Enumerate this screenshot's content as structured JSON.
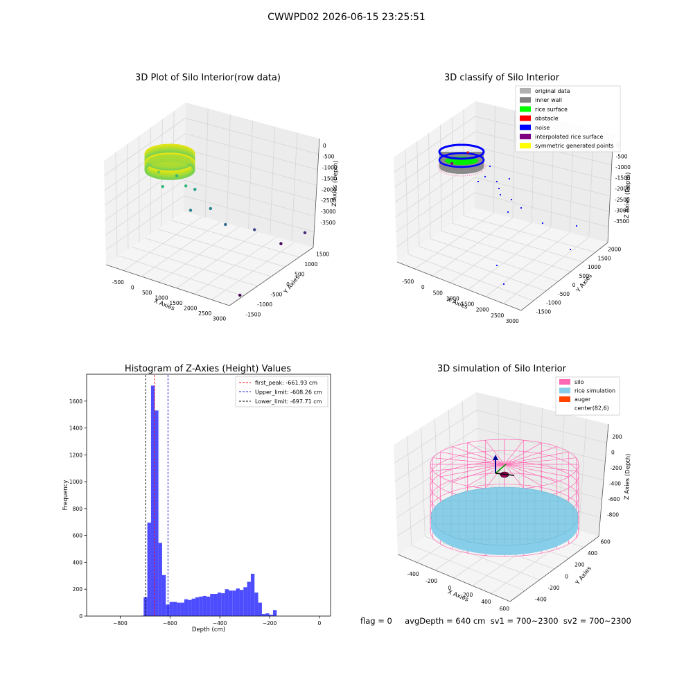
{
  "figure": {
    "title": "CWWPD02 2026-06-15 23:25:51",
    "status_text": "flag = 0     avgDepth = 640 cm  sv1 = 700~2300  sv2 = 700~2300"
  },
  "chart_data": [
    {
      "type": "scatter",
      "title": "3D Plot of Silo Interior(row data)",
      "xlabel": "X Axies",
      "ylabel": "Y Axies",
      "zlabel": "Z Axies (Depth)",
      "x_ticks": [
        "-500",
        "0",
        "500",
        "1000",
        "1500",
        "2000",
        "2500",
        "3000"
      ],
      "y_ticks": [
        "-1500",
        "-1000",
        "-500",
        "0",
        "500",
        "1000",
        "1500"
      ],
      "z_ticks": [
        "0",
        "-500",
        "-1000",
        "-1500",
        "-2000",
        "-2500",
        "-3000",
        "-3500"
      ],
      "colormap": "viridis by depth",
      "outlier_points": [
        {
          "x": 0,
          "y": -400,
          "z": -1000
        },
        {
          "x": 200,
          "y": -500,
          "z": -1300
        },
        {
          "x": 400,
          "y": -200,
          "z": -1100
        },
        {
          "x": 600,
          "y": -100,
          "z": -1400
        },
        {
          "x": 800,
          "y": 0,
          "z": -1500
        },
        {
          "x": 900,
          "y": -300,
          "z": -1900
        },
        {
          "x": 1200,
          "y": 100,
          "z": -2000
        },
        {
          "x": 1500,
          "y": 300,
          "z": -2500
        },
        {
          "x": 2000,
          "y": 800,
          "z": -2800
        },
        {
          "x": 2500,
          "y": 1200,
          "z": -3300
        },
        {
          "x": 2800,
          "y": -800,
          "z": -3500
        },
        {
          "x": 3000,
          "y": 1500,
          "z": -3000
        }
      ]
    },
    {
      "type": "scatter",
      "title": "3D classify of Silo Interior",
      "xlabel": "X Axies",
      "ylabel": "Y Axies",
      "zlabel": "Z Axies (Depth)",
      "x_ticks": [
        "-500",
        "0",
        "500",
        "1000",
        "1500",
        "2000",
        "2500",
        "3000"
      ],
      "y_ticks": [
        "-1500",
        "-1000",
        "-500",
        "0",
        "500",
        "1000",
        "1500",
        "2000"
      ],
      "z_ticks": [
        "0",
        "-500",
        "-1000",
        "-1500",
        "-2000",
        "-2500",
        "-3000",
        "-3500"
      ],
      "legend": [
        {
          "label": "original data",
          "color": "#b0b0b0"
        },
        {
          "label": "inner wall",
          "color": "#808080"
        },
        {
          "label": "rice surface",
          "color": "#00ff00"
        },
        {
          "label": "obstacle",
          "color": "#ff0000"
        },
        {
          "label": "noise",
          "color": "#0000ff"
        },
        {
          "label": "interpolated rice surface",
          "color": "#800080"
        },
        {
          "label": "symmetric generated points",
          "color": "#ffff00"
        }
      ],
      "legend_position": "top-right"
    },
    {
      "type": "bar",
      "title": "Histogram of Z-Axies (Height) Values",
      "xlabel": "Depth (cm)",
      "ylabel": "Frequency",
      "xlim": [
        -935,
        45
      ],
      "ylim": [
        0,
        1800
      ],
      "x_ticks": [
        -800,
        -600,
        -400,
        -200,
        0
      ],
      "y_ticks": [
        0,
        200,
        400,
        600,
        800,
        1000,
        1200,
        1400,
        1600
      ],
      "bar_color": "#4d4dff",
      "bins": {
        "start": -706,
        "width": 14.85,
        "values": [
          140,
          695,
          1715,
          1530,
          545,
          305,
          85,
          105,
          105,
          100,
          100,
          125,
          120,
          130,
          140,
          145,
          150,
          145,
          165,
          165,
          175,
          170,
          200,
          190,
          190,
          205,
          195,
          215,
          255,
          315,
          175,
          100,
          15,
          20,
          10,
          45
        ]
      },
      "extra_bins": [
        {
          "x0": -716,
          "x1": -706,
          "value": 3
        }
      ],
      "lines": [
        {
          "label": "first_peak: -661.93 cm",
          "x": -661.93,
          "color": "#ff0000"
        },
        {
          "label": "Upper_limit: -608.26 cm",
          "x": -608.26,
          "color": "#0000cc"
        },
        {
          "label": "Lower_limit: -697.71 cm",
          "x": -697.71,
          "color": "#000000"
        }
      ],
      "legend_position": "top-right"
    },
    {
      "type": "scatter",
      "title": "3D simulation of Silo Interior",
      "xlabel": "X Axies",
      "ylabel": "Y Axies",
      "zlabel": "Z Axies (Depth)",
      "x_ticks": [
        "-400",
        "-200",
        "0",
        "200",
        "400",
        "600"
      ],
      "y_ticks": [
        "-400",
        "-200",
        "0",
        "200",
        "400",
        "600"
      ],
      "z_ticks": [
        "200",
        "0",
        "-200",
        "-400",
        "-600",
        "-800"
      ],
      "legend": [
        {
          "label": "silo",
          "color": "#ff69b4"
        },
        {
          "label": "rice simulation",
          "color": "#87ceeb"
        },
        {
          "label": "auger",
          "color": "#ff4500"
        },
        {
          "label": "center(82,6)",
          "color": ""
        }
      ],
      "legend_position": "top-right",
      "avg_depth": 640
    }
  ]
}
